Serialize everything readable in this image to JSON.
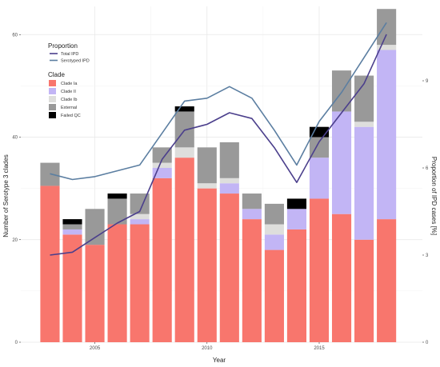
{
  "chart_data": {
    "type": "bar",
    "xlabel": "Year",
    "ylabel_left": "Number of Serotype 3 clades",
    "ylabel_right": "Proportion of IPD cases [%]",
    "x_years": [
      2003,
      2004,
      2005,
      2006,
      2007,
      2008,
      2009,
      2010,
      2011,
      2012,
      2013,
      2014,
      2015,
      2016,
      2017,
      2018
    ],
    "x_ticks": [
      2005,
      2010,
      2015
    ],
    "x_tick_labels": [
      "2005",
      "2010",
      "2015"
    ],
    "xlim": [
      2001.7,
      2019.6
    ],
    "ylim_left": [
      0,
      65.5
    ],
    "y_ticks_left": [
      0,
      20,
      40,
      60
    ],
    "y_tick_labels_left": [
      "0",
      "20",
      "40",
      "60"
    ],
    "ylim_right": [
      0,
      11.56
    ],
    "y_ticks_right": [
      0,
      3,
      6,
      9
    ],
    "y_tick_labels_right": [
      "0",
      "3",
      "6",
      "9"
    ],
    "grid": true,
    "bar_series": [
      {
        "name": "Clade Ia",
        "color": "#f8766d",
        "values": [
          30.5,
          21,
          19,
          23,
          23,
          32,
          36,
          30,
          29,
          24,
          18,
          22,
          28,
          25,
          20,
          24
        ]
      },
      {
        "name": "Clade II",
        "color": "#c2b5f5",
        "values": [
          0,
          1,
          0,
          0,
          1,
          2,
          0,
          0,
          2,
          2,
          3,
          4,
          8,
          20,
          22,
          33
        ]
      },
      {
        "name": "Clade Ib",
        "color": "#dededc",
        "values": [
          0,
          0,
          0,
          0,
          1,
          1,
          2,
          1,
          1,
          0,
          2,
          0,
          0,
          0,
          1,
          1
        ]
      },
      {
        "name": "External",
        "color": "#999999",
        "values": [
          4.5,
          1,
          7,
          5,
          4,
          3,
          7,
          7,
          7,
          3,
          4,
          0,
          4,
          8,
          9,
          7
        ]
      },
      {
        "name": "Failed QC",
        "color": "#000000",
        "values": [
          0,
          1,
          0,
          1,
          0,
          0,
          1,
          0,
          0,
          0,
          0,
          2,
          2,
          0,
          0,
          0
        ]
      }
    ],
    "line_series": [
      {
        "name": "Total IPD",
        "color": "#4b3f8c",
        "values": [
          3.0,
          3.1,
          3.6,
          4.1,
          4.5,
          6.3,
          7.3,
          7.5,
          7.9,
          7.7,
          6.7,
          5.5,
          6.9,
          7.9,
          8.9,
          10.6
        ]
      },
      {
        "name": "Serotyped IPD",
        "color": "#5b7ea1",
        "values": [
          5.8,
          5.6,
          5.7,
          5.9,
          6.1,
          7.2,
          8.3,
          8.4,
          8.8,
          8.4,
          7.3,
          6.1,
          7.6,
          8.6,
          9.8,
          11.0
        ]
      }
    ],
    "legend": {
      "position": "top-left",
      "line_title": "Proportion",
      "bar_title": "Clade"
    }
  }
}
